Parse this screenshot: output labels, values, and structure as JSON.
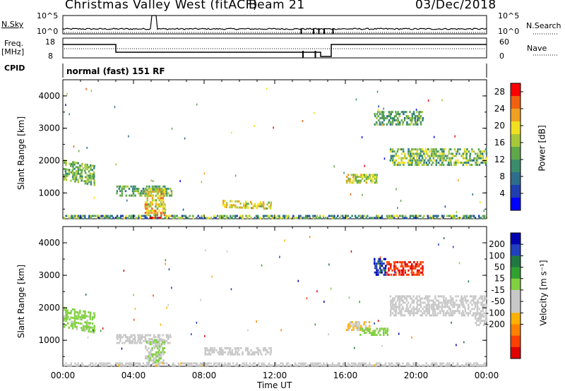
{
  "header": {
    "station": "Christmas Valley West (fitACF)",
    "beam": "Beam 21",
    "date": "03/Dec/2018"
  },
  "panel_labels": {
    "nsky": "N.Sky",
    "nsky_top": "10^5",
    "nsky_bottom": "10^0",
    "nsearch": "N.Search",
    "nsearch_top": "10^5",
    "nsearch_bottom": "10^0",
    "freq_line1": "Freq.",
    "freq_line2": "[MHz]",
    "freq_top": "18",
    "freq_bottom": "8",
    "nave": "Nave",
    "nave_top": "60",
    "nave_bottom": "0",
    "cpid": "CPID",
    "cpid_value": "normal (fast) 151 RF"
  },
  "colors": {
    "power": [
      "#0000ff",
      "#1f3fb0",
      "#2e6e8c",
      "#3a8c6a",
      "#5fa84a",
      "#a8c83a",
      "#f0e020",
      "#f0a020",
      "#f06010",
      "#ff0000"
    ],
    "velocity": [
      "#0000b0",
      "#2040c0",
      "#207840",
      "#30a030",
      "#80d040",
      "#c8c8c8",
      "#c8c8c8",
      "#ffb000",
      "#ff8000",
      "#ff4000",
      "#e00000"
    ]
  },
  "chart_data": [
    {
      "type": "heatmap",
      "name": "power",
      "ylabel": "Slant Range [km]",
      "xlabel": "",
      "xlim": [
        "00:00",
        "24:00"
      ],
      "ylim": [
        200,
        4500
      ],
      "yticks": [
        "1000",
        "2000",
        "3000",
        "4000"
      ],
      "colorbar": {
        "label": "Power [dB]",
        "ticks": [
          "4",
          "8",
          "12",
          "16",
          "20",
          "24",
          "28"
        ],
        "range": [
          0,
          30
        ]
      },
      "patches": [
        {
          "t0": 0.0,
          "t1": 1.8,
          "r0": 1450,
          "r1": 2100,
          "v0": 10,
          "v1": 18,
          "slope": -0.25
        },
        {
          "t0": 3.0,
          "t1": 6.2,
          "r0": 950,
          "r1": 1300,
          "v0": 8,
          "v1": 18,
          "slope": 0
        },
        {
          "t0": 4.6,
          "t1": 5.8,
          "r0": 350,
          "r1": 1200,
          "v0": 14,
          "v1": 26,
          "slope": 0
        },
        {
          "t0": 9.0,
          "t1": 11.8,
          "r0": 600,
          "r1": 850,
          "v0": 14,
          "v1": 24,
          "slope": -0.05
        },
        {
          "t0": 16.0,
          "t1": 17.8,
          "r0": 1350,
          "r1": 1650,
          "v0": 12,
          "v1": 22,
          "slope": 0
        },
        {
          "t0": 17.6,
          "t1": 20.4,
          "r0": 3150,
          "r1": 3600,
          "v0": 8,
          "v1": 16,
          "slope": 0
        },
        {
          "t0": 18.5,
          "t1": 24.0,
          "r0": 1900,
          "r1": 2450,
          "v0": 8,
          "v1": 20,
          "slope": 0
        },
        {
          "t0": 0.0,
          "t1": 24.0,
          "r0": 200,
          "r1": 380,
          "v0": 4,
          "v1": 20,
          "slope": 0
        },
        {
          "t0": 4.9,
          "t1": 5.6,
          "r0": 200,
          "r1": 330,
          "v0": 26,
          "v1": 30,
          "slope": 0
        }
      ]
    },
    {
      "type": "heatmap",
      "name": "velocity",
      "ylabel": "Slant Range [km]",
      "xlabel": "Time UT",
      "xlim": [
        "00:00",
        "24:00"
      ],
      "ylim": [
        200,
        4500
      ],
      "xticks": [
        "00:00",
        "04:00",
        "08:00",
        "12:00",
        "16:00",
        "20:00",
        "00:00"
      ],
      "yticks": [
        "1000",
        "2000",
        "3000",
        "4000"
      ],
      "colorbar": {
        "label": "Velocity [m s⁻¹]",
        "ticks": [
          "200",
          "100",
          "50",
          "15",
          "-15",
          "-50",
          "-100",
          "-200"
        ],
        "range": [
          -250,
          250
        ]
      },
      "patches": [
        {
          "t0": 0.0,
          "t1": 1.8,
          "r0": 1450,
          "r1": 2100,
          "v0": 20,
          "v1": 60,
          "slope": -0.25
        },
        {
          "t0": 3.0,
          "t1": 6.2,
          "r0": 950,
          "r1": 1250,
          "v0": -10,
          "v1": 10,
          "slope": 0
        },
        {
          "t0": 4.6,
          "t1": 5.8,
          "r0": 350,
          "r1": 1100,
          "v0": -5,
          "v1": 40,
          "slope": 0
        },
        {
          "t0": 8.0,
          "t1": 11.8,
          "r0": 600,
          "r1": 850,
          "v0": -40,
          "v1": 10,
          "slope": 0
        },
        {
          "t0": 16.0,
          "t1": 17.4,
          "r0": 1350,
          "r1": 1650,
          "v0": -90,
          "v1": -40,
          "slope": 0
        },
        {
          "t0": 16.8,
          "t1": 18.4,
          "r0": 1200,
          "r1": 1450,
          "v0": 20,
          "v1": 60,
          "slope": 0
        },
        {
          "t0": 17.6,
          "t1": 18.3,
          "r0": 3050,
          "r1": 3600,
          "v0": 150,
          "v1": 240,
          "slope": 0
        },
        {
          "t0": 18.3,
          "t1": 20.4,
          "r0": 3050,
          "r1": 3500,
          "v0": -240,
          "v1": -160,
          "slope": 0
        },
        {
          "t0": 18.5,
          "t1": 24.0,
          "r0": 1800,
          "r1": 2450,
          "v0": -14,
          "v1": 14,
          "slope": 0
        },
        {
          "t0": 23.3,
          "t1": 24.0,
          "r0": 1500,
          "r1": 1900,
          "v0": -60,
          "v1": -20,
          "slope": 0
        },
        {
          "t0": 0.0,
          "t1": 24.0,
          "r0": 200,
          "r1": 380,
          "v0": -70,
          "v1": 20,
          "slope": 0
        }
      ]
    }
  ]
}
